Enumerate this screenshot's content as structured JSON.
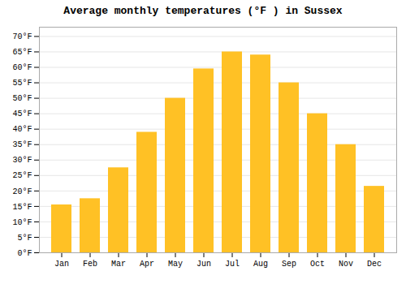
{
  "chart_data": {
    "type": "bar",
    "title": "Average monthly temperatures (°F ) in Sussex",
    "categories": [
      "Jan",
      "Feb",
      "Mar",
      "Apr",
      "May",
      "Jun",
      "Jul",
      "Aug",
      "Sep",
      "Oct",
      "Nov",
      "Dec"
    ],
    "values": [
      15.5,
      17.5,
      27.5,
      39,
      50,
      59.5,
      65,
      64,
      55,
      45,
      35,
      21.5
    ],
    "color": "#FFC125",
    "ylim": [
      0,
      73
    ],
    "yticks": [
      {
        "value": 0,
        "label": "0°F"
      },
      {
        "value": 5,
        "label": "5°F"
      },
      {
        "value": 10,
        "label": "10°F"
      },
      {
        "value": 15,
        "label": "15°F"
      },
      {
        "value": 20,
        "label": "20°F"
      },
      {
        "value": 25,
        "label": "25°F"
      },
      {
        "value": 30,
        "label": "30°F"
      },
      {
        "value": 35,
        "label": "35°F"
      },
      {
        "value": 40,
        "label": "40°F"
      },
      {
        "value": 45,
        "label": "45°F"
      },
      {
        "value": 50,
        "label": "50°F"
      },
      {
        "value": 55,
        "label": "55°F"
      },
      {
        "value": 60,
        "label": "60°F"
      },
      {
        "value": 65,
        "label": "65°F"
      },
      {
        "value": 70,
        "label": "70°F"
      }
    ],
    "grid": true
  }
}
